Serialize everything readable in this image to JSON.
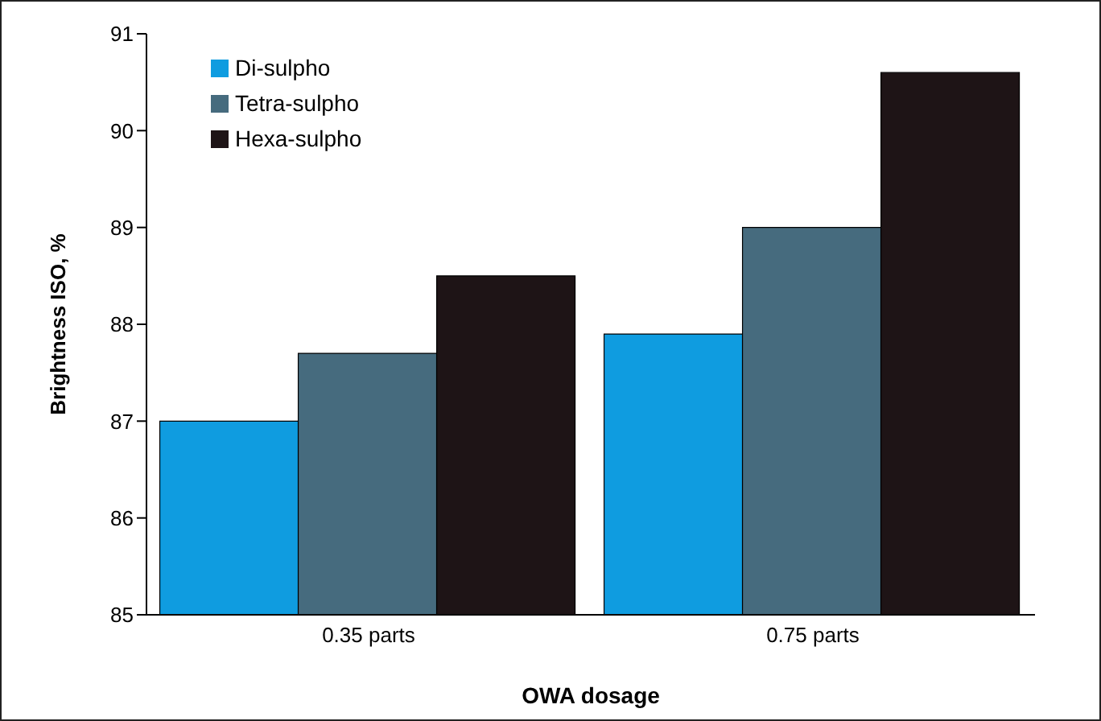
{
  "chart_data": {
    "type": "bar",
    "xlabel": "OWA dosage",
    "ylabel": "Brightness ISO, %",
    "categories": [
      "0.35 parts",
      "0.75 parts"
    ],
    "series": [
      {
        "name": "Di-sulpho",
        "color": "#0f9ce0",
        "values": [
          87.0,
          87.9
        ]
      },
      {
        "name": "Tetra-sulpho",
        "color": "#466b7e",
        "values": [
          87.7,
          89.0
        ]
      },
      {
        "name": "Hexa-sulpho",
        "color": "#1e1416",
        "values": [
          88.5,
          90.6
        ]
      }
    ],
    "ylim": [
      85,
      91
    ],
    "yticks": [
      85,
      86,
      87,
      88,
      89,
      90,
      91
    ],
    "grid": false,
    "legend": "top left"
  }
}
